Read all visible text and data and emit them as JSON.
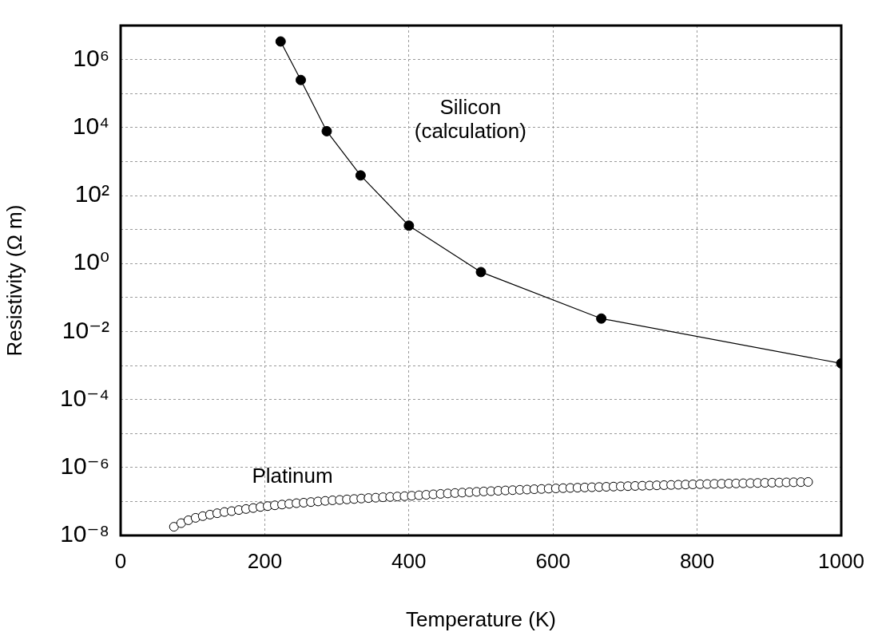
{
  "chart_data": {
    "type": "line",
    "xlabel": "Temperature (K)",
    "ylabel": "Resistivity (Ω m)",
    "xlim": [
      0,
      1000
    ],
    "xticks": [
      0,
      200,
      400,
      600,
      800,
      1000
    ],
    "ylim": [
      1e-08,
      10000000.0
    ],
    "yticks": [
      {
        "value": 1e-08,
        "label": "10⁻⁸"
      },
      {
        "value": 1e-07,
        "label": null
      },
      {
        "value": 1e-06,
        "label": "10⁻⁶"
      },
      {
        "value": 1e-05,
        "label": null
      },
      {
        "value": 0.0001,
        "label": "10⁻⁴"
      },
      {
        "value": 0.001,
        "label": null
      },
      {
        "value": 0.01,
        "label": "10⁻²"
      },
      {
        "value": 0.1,
        "label": null
      },
      {
        "value": 1,
        "label": "10⁰"
      },
      {
        "value": 10,
        "label": null
      },
      {
        "value": 100,
        "label": "10²"
      },
      {
        "value": 1000,
        "label": null
      },
      {
        "value": 10000,
        "label": "10⁴"
      },
      {
        "value": 100000,
        "label": null
      },
      {
        "value": 1000000,
        "label": "10⁶"
      },
      {
        "value": 10000000,
        "label": null
      }
    ],
    "log": "y",
    "grid": true,
    "series": [
      {
        "name": "Silicon (calculation)",
        "color": "#000000",
        "marker": "circle",
        "line_style": "solid",
        "x": [
          222,
          250,
          286,
          333,
          400,
          500,
          667,
          1000
        ],
        "values": [
          3400000.0,
          250000.0,
          7800,
          390,
          13,
          0.56,
          0.024,
          0.00115
        ]
      },
      {
        "name": "Platinum",
        "type": "scatter",
        "color": "#000000",
        "marker": "circle",
        "x": [
          74,
          84,
          94,
          104,
          114,
          124,
          134,
          144,
          154,
          164,
          174,
          184,
          194,
          204,
          214,
          224,
          234,
          244,
          254,
          264,
          274,
          284,
          294,
          304,
          314,
          324,
          334,
          344,
          354,
          364,
          374,
          384,
          394,
          404,
          414,
          424,
          434,
          444,
          454,
          464,
          474,
          484,
          494,
          504,
          514,
          524,
          534,
          544,
          554,
          564,
          574,
          584,
          594,
          604,
          614,
          624,
          634,
          644,
          654,
          664,
          674,
          684,
          694,
          704,
          714,
          724,
          734,
          744,
          754,
          764,
          774,
          784,
          794,
          804,
          814,
          824,
          834,
          844,
          854,
          864,
          874,
          884,
          894,
          904,
          914,
          924,
          934,
          944,
          954
        ],
        "values": [
          1.8e-08,
          2.3e-08,
          2.8e-08,
          3.3e-08,
          3.7e-08,
          4.1e-08,
          4.5e-08,
          4.9e-08,
          5.2e-08,
          5.6e-08,
          6e-08,
          6.4e-08,
          6.9e-08,
          7.3e-08,
          7.7e-08,
          8.1e-08,
          8.5e-08,
          8.9e-08,
          9.2e-08,
          9.6e-08,
          1e-07,
          1.04e-07,
          1.08e-07,
          1.11e-07,
          1.15e-07,
          1.18e-07,
          1.22e-07,
          1.26e-07,
          1.29e-07,
          1.33e-07,
          1.36e-07,
          1.4e-07,
          1.43e-07,
          1.47e-07,
          1.52e-07,
          1.57e-07,
          1.62e-07,
          1.67e-07,
          1.72e-07,
          1.77e-07,
          1.82e-07,
          1.87e-07,
          1.92e-07,
          1.97e-07,
          2.01e-07,
          2.06e-07,
          2.11e-07,
          2.15e-07,
          2.2e-07,
          2.24e-07,
          2.29e-07,
          2.33e-07,
          2.38e-07,
          2.42e-07,
          2.46e-07,
          2.5e-07,
          2.54e-07,
          2.58e-07,
          2.62e-07,
          2.66e-07,
          2.7e-07,
          2.74e-07,
          2.78e-07,
          2.82e-07,
          2.86e-07,
          2.9e-07,
          2.94e-07,
          2.98e-07,
          3.02e-07,
          3.06e-07,
          3.1e-07,
          3.14e-07,
          3.18e-07,
          3.22e-07,
          3.25e-07,
          3.29e-07,
          3.32e-07,
          3.36e-07,
          3.39e-07,
          3.43e-07,
          3.46e-07,
          3.5e-07,
          3.53e-07,
          3.57e-07,
          3.6e-07,
          3.64e-07,
          3.67e-07,
          3.71e-07,
          3.75e-07
        ]
      }
    ]
  }
}
